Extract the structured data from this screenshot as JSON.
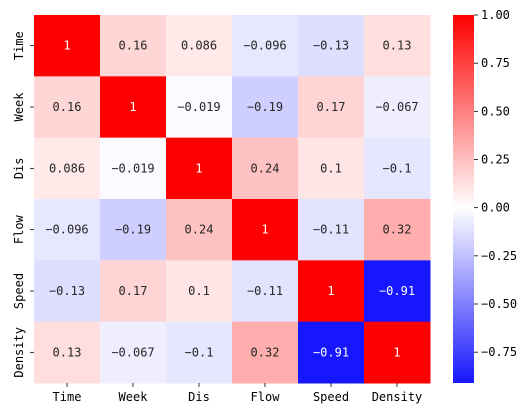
{
  "chart_data": {
    "type": "heatmap",
    "title": "",
    "xlabel": "",
    "ylabel": "",
    "x_categories": [
      "Time",
      "Week",
      "Dis",
      "Flow",
      "Speed",
      "Density"
    ],
    "y_categories": [
      "Time",
      "Week",
      "Dis",
      "Flow",
      "Speed",
      "Density"
    ],
    "values": [
      [
        1,
        0.16,
        0.086,
        -0.096,
        -0.13,
        0.13
      ],
      [
        0.16,
        1,
        -0.019,
        -0.19,
        0.17,
        -0.067
      ],
      [
        0.086,
        -0.019,
        1,
        0.24,
        0.1,
        -0.1
      ],
      [
        -0.096,
        -0.19,
        0.24,
        1,
        -0.11,
        0.32
      ],
      [
        -0.13,
        0.17,
        0.1,
        -0.11,
        1,
        -0.91
      ],
      [
        0.13,
        -0.067,
        -0.1,
        0.32,
        -0.91,
        1
      ]
    ],
    "value_labels": [
      [
        "1",
        "0.16",
        "0.086",
        "−0.096",
        "−0.13",
        "0.13"
      ],
      [
        "0.16",
        "1",
        "−0.019",
        "−0.19",
        "0.17",
        "−0.067"
      ],
      [
        "0.086",
        "−0.019",
        "1",
        "0.24",
        "0.1",
        "−0.1"
      ],
      [
        "−0.096",
        "−0.19",
        "0.24",
        "1",
        "−0.11",
        "0.32"
      ],
      [
        "−0.13",
        "0.17",
        "0.1",
        "−0.11",
        "1",
        "−0.91"
      ],
      [
        "0.13",
        "−0.067",
        "−0.1",
        "0.32",
        "−0.91",
        "1"
      ]
    ],
    "colormap": "bwr",
    "colormap_colors": {
      "low": "#0000ff",
      "mid": "#ffffff",
      "high": "#ff0000"
    },
    "vmin": -0.91,
    "vmax": 1.0,
    "colorbar_ticks": [
      1.0,
      0.75,
      0.5,
      0.25,
      0.0,
      -0.25,
      -0.5,
      -0.75
    ],
    "colorbar_tick_labels": [
      "1.00",
      "0.75",
      "0.50",
      "0.25",
      "0.00",
      "−0.25",
      "−0.50",
      "−0.75"
    ],
    "annotation_text_color_dark_bg": "#ffffff",
    "annotation_text_color_light_bg": "#262626"
  }
}
